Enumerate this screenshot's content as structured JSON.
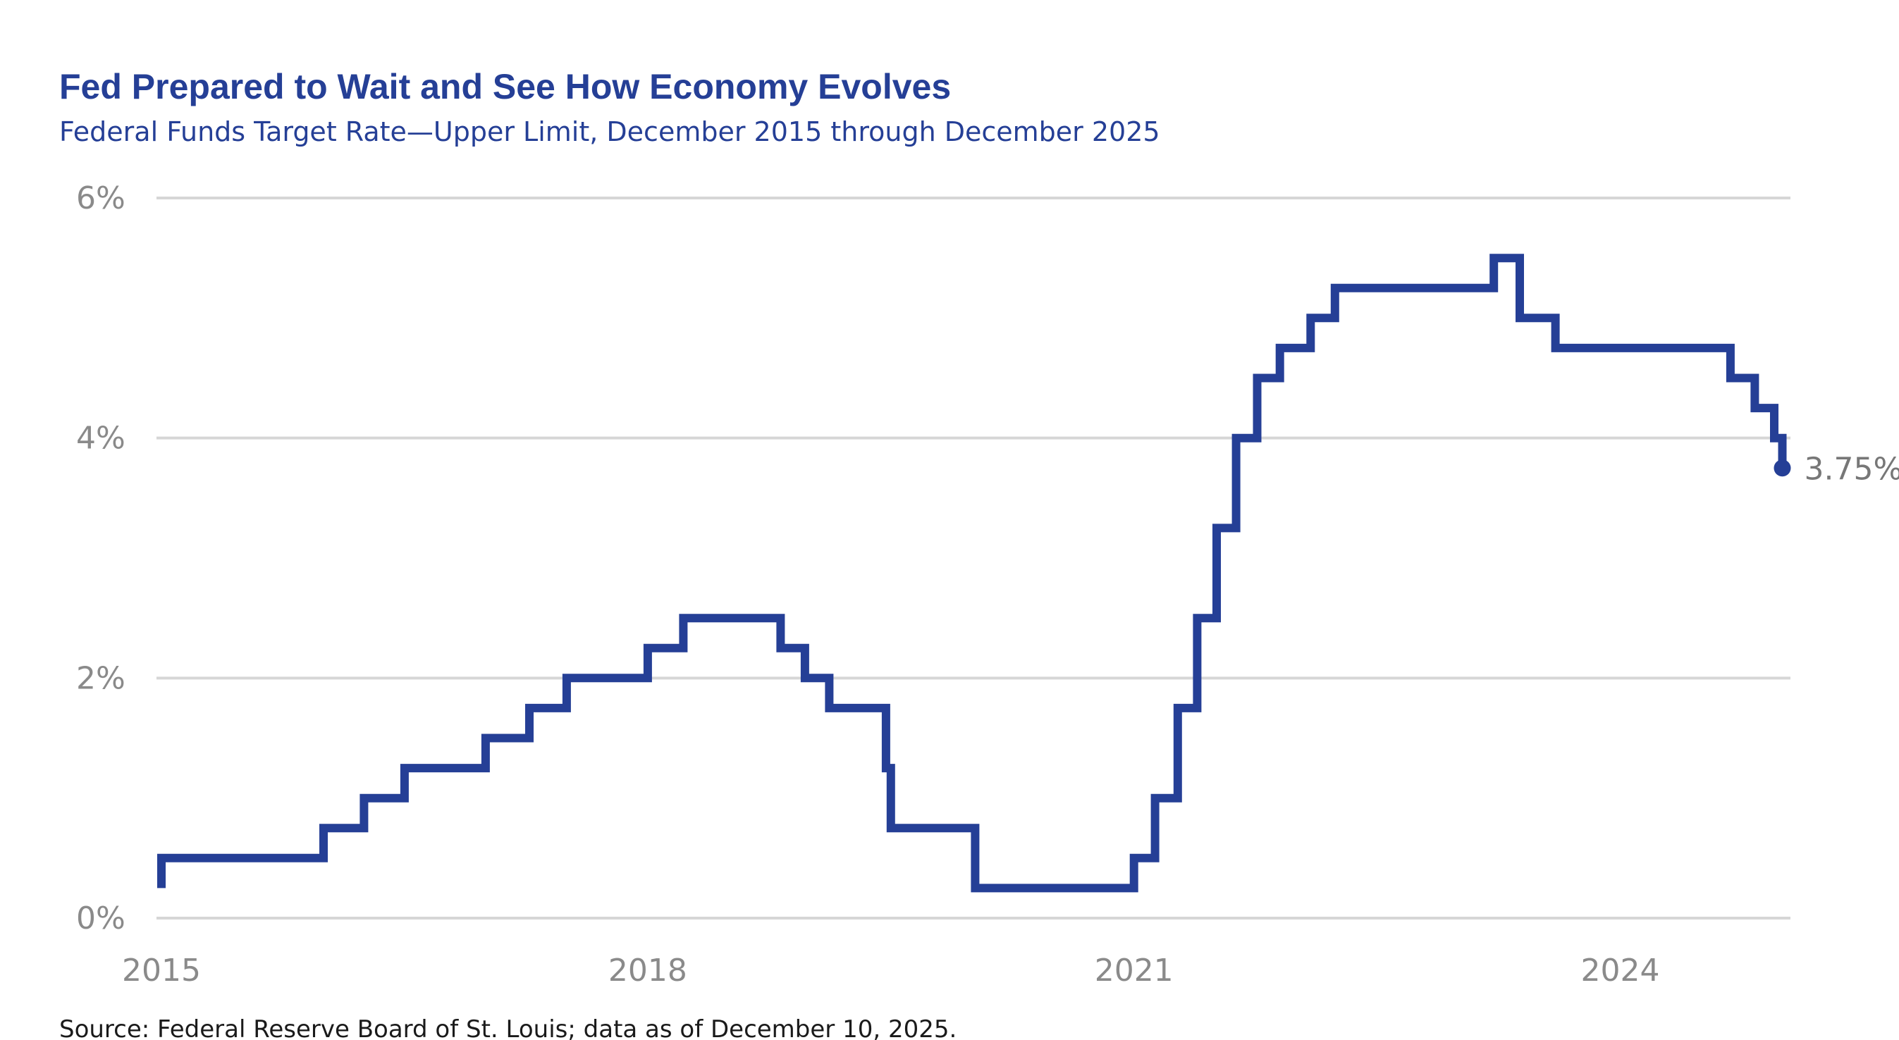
{
  "chart_data": {
    "type": "line",
    "step": true,
    "title": "Fed Prepared to Wait and See How Economy Evolves",
    "subtitle": "Federal Funds Target Rate—Upper Limit, December 2015 through December 2025",
    "source": "Source: Federal Reserve Board of St. Louis; data as of December 10, 2025.",
    "xlabel": "",
    "ylabel": "",
    "xlim": [
      2015.0,
      2025.05
    ],
    "ylim": [
      0,
      6
    ],
    "x_ticks": [
      {
        "value": 2015,
        "label": "2015"
      },
      {
        "value": 2018,
        "label": "2018"
      },
      {
        "value": 2021,
        "label": "2021"
      },
      {
        "value": 2024,
        "label": "2024"
      }
    ],
    "y_ticks": [
      {
        "value": 0,
        "label": "0%"
      },
      {
        "value": 2,
        "label": "2%"
      },
      {
        "value": 4,
        "label": "4%"
      },
      {
        "value": 6,
        "label": "6%"
      }
    ],
    "grid": true,
    "series": [
      {
        "name": "Federal Funds Target Rate—Upper Limit",
        "color": "#253f96",
        "x": [
          2015.0,
          2015.0,
          2016.0,
          2016.25,
          2016.5,
          2017.0,
          2017.27,
          2017.5,
          2018.0,
          2018.22,
          2018.82,
          2018.97,
          2019.12,
          2019.47,
          2019.5,
          2020.02,
          2020.05,
          2021.0,
          2021.13,
          2021.27,
          2021.39,
          2021.51,
          2021.63,
          2021.76,
          2021.9,
          2022.09,
          2022.24,
          2023.22,
          2023.38,
          2023.6,
          2024.68,
          2024.83,
          2024.95,
          2025.0
        ],
        "values": [
          0.25,
          0.5,
          0.75,
          1.0,
          1.25,
          1.5,
          1.75,
          2.0,
          2.25,
          2.5,
          2.25,
          2.0,
          1.75,
          1.25,
          0.75,
          0.25,
          0.25,
          0.5,
          1.0,
          1.75,
          2.5,
          3.25,
          4.0,
          4.5,
          4.75,
          5.0,
          5.25,
          5.5,
          5.0,
          4.75,
          4.5,
          4.25,
          4.0,
          3.75
        ],
        "end_label": "3.75%"
      }
    ]
  }
}
